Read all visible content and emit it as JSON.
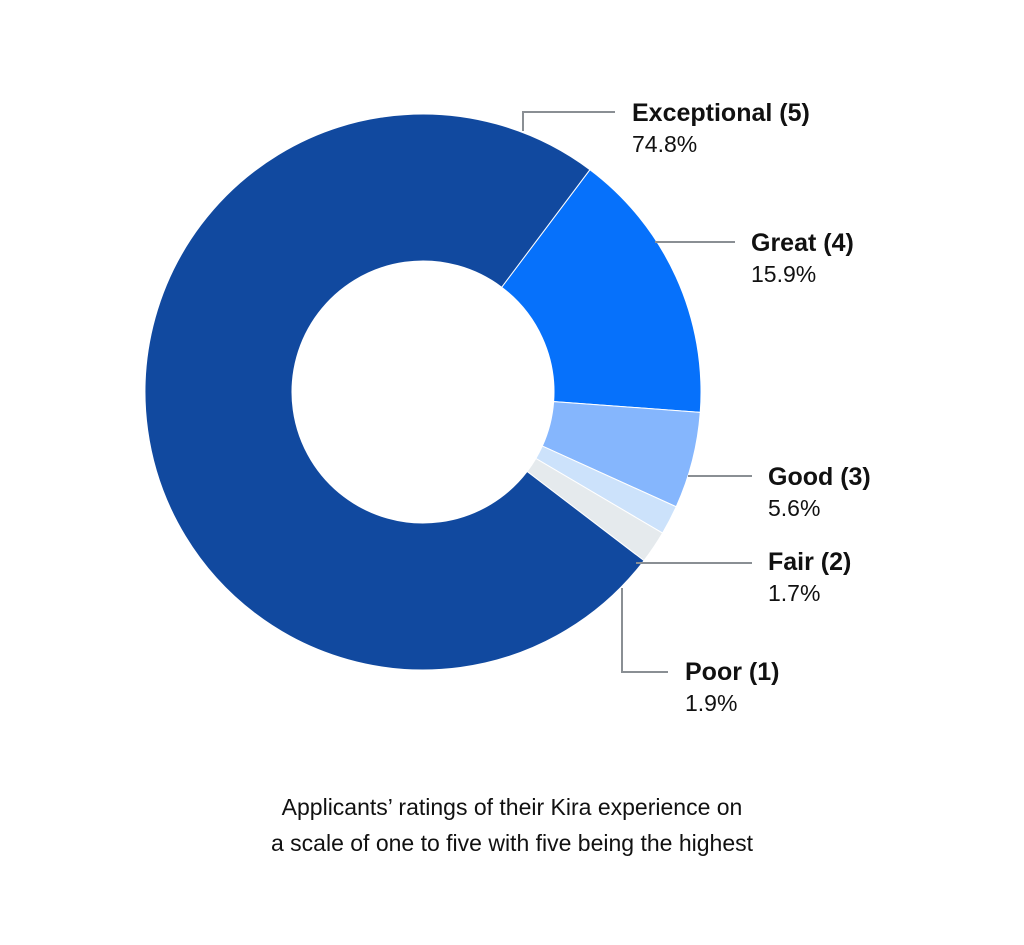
{
  "chart_data": {
    "type": "pie",
    "variant": "donut",
    "start": "Exceptional (5) slice begins at top, proceeding clockwise",
    "slices": [
      {
        "label": "Exceptional (5)",
        "value": 74.8,
        "display": "74.8%",
        "color": "#11499f"
      },
      {
        "label": "Great (4)",
        "value": 15.9,
        "display": "15.9%",
        "color": "#0671fb"
      },
      {
        "label": "Good (3)",
        "value": 5.6,
        "display": "5.6%",
        "color": "#85b6fd"
      },
      {
        "label": "Fair (2)",
        "value": 1.7,
        "display": "1.7%",
        "color": "#cce2fb"
      },
      {
        "label": "Poor (1)",
        "value": 1.9,
        "display": "1.9%",
        "color": "#e5eaed"
      }
    ],
    "leader_color": "#8a8f94",
    "legend": "callouts-right"
  },
  "caption": {
    "line1": "Applicants’ ratings of their Kira experience on",
    "line2": "a scale of one to five with five being the highest"
  }
}
